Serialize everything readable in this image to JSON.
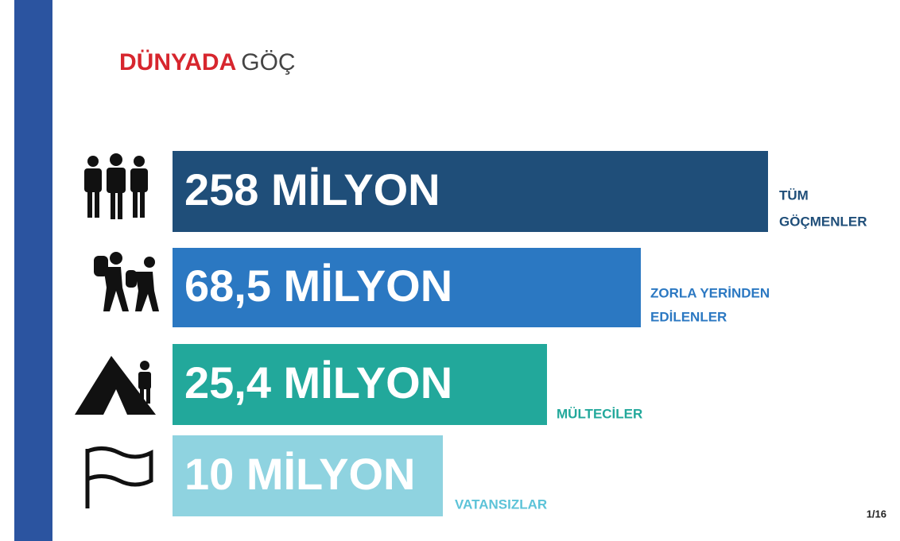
{
  "header": {
    "title_red": "DÜNYADA",
    "title_dark": "GÖÇ"
  },
  "rows": [
    {
      "value": "258 MİLYON",
      "label": [
        "TÜM",
        "GÖÇMENLER"
      ]
    },
    {
      "value": "68,5 MİLYON",
      "label": [
        "ZORLA YERİNDEN",
        "EDİLENLER"
      ]
    },
    {
      "value": "25,4 MİLYON",
      "label": [
        "MÜLTECİLER"
      ]
    },
    {
      "value": "10 MİLYON",
      "label": [
        "VATANSIZLAR"
      ]
    }
  ],
  "page": "1/16"
}
